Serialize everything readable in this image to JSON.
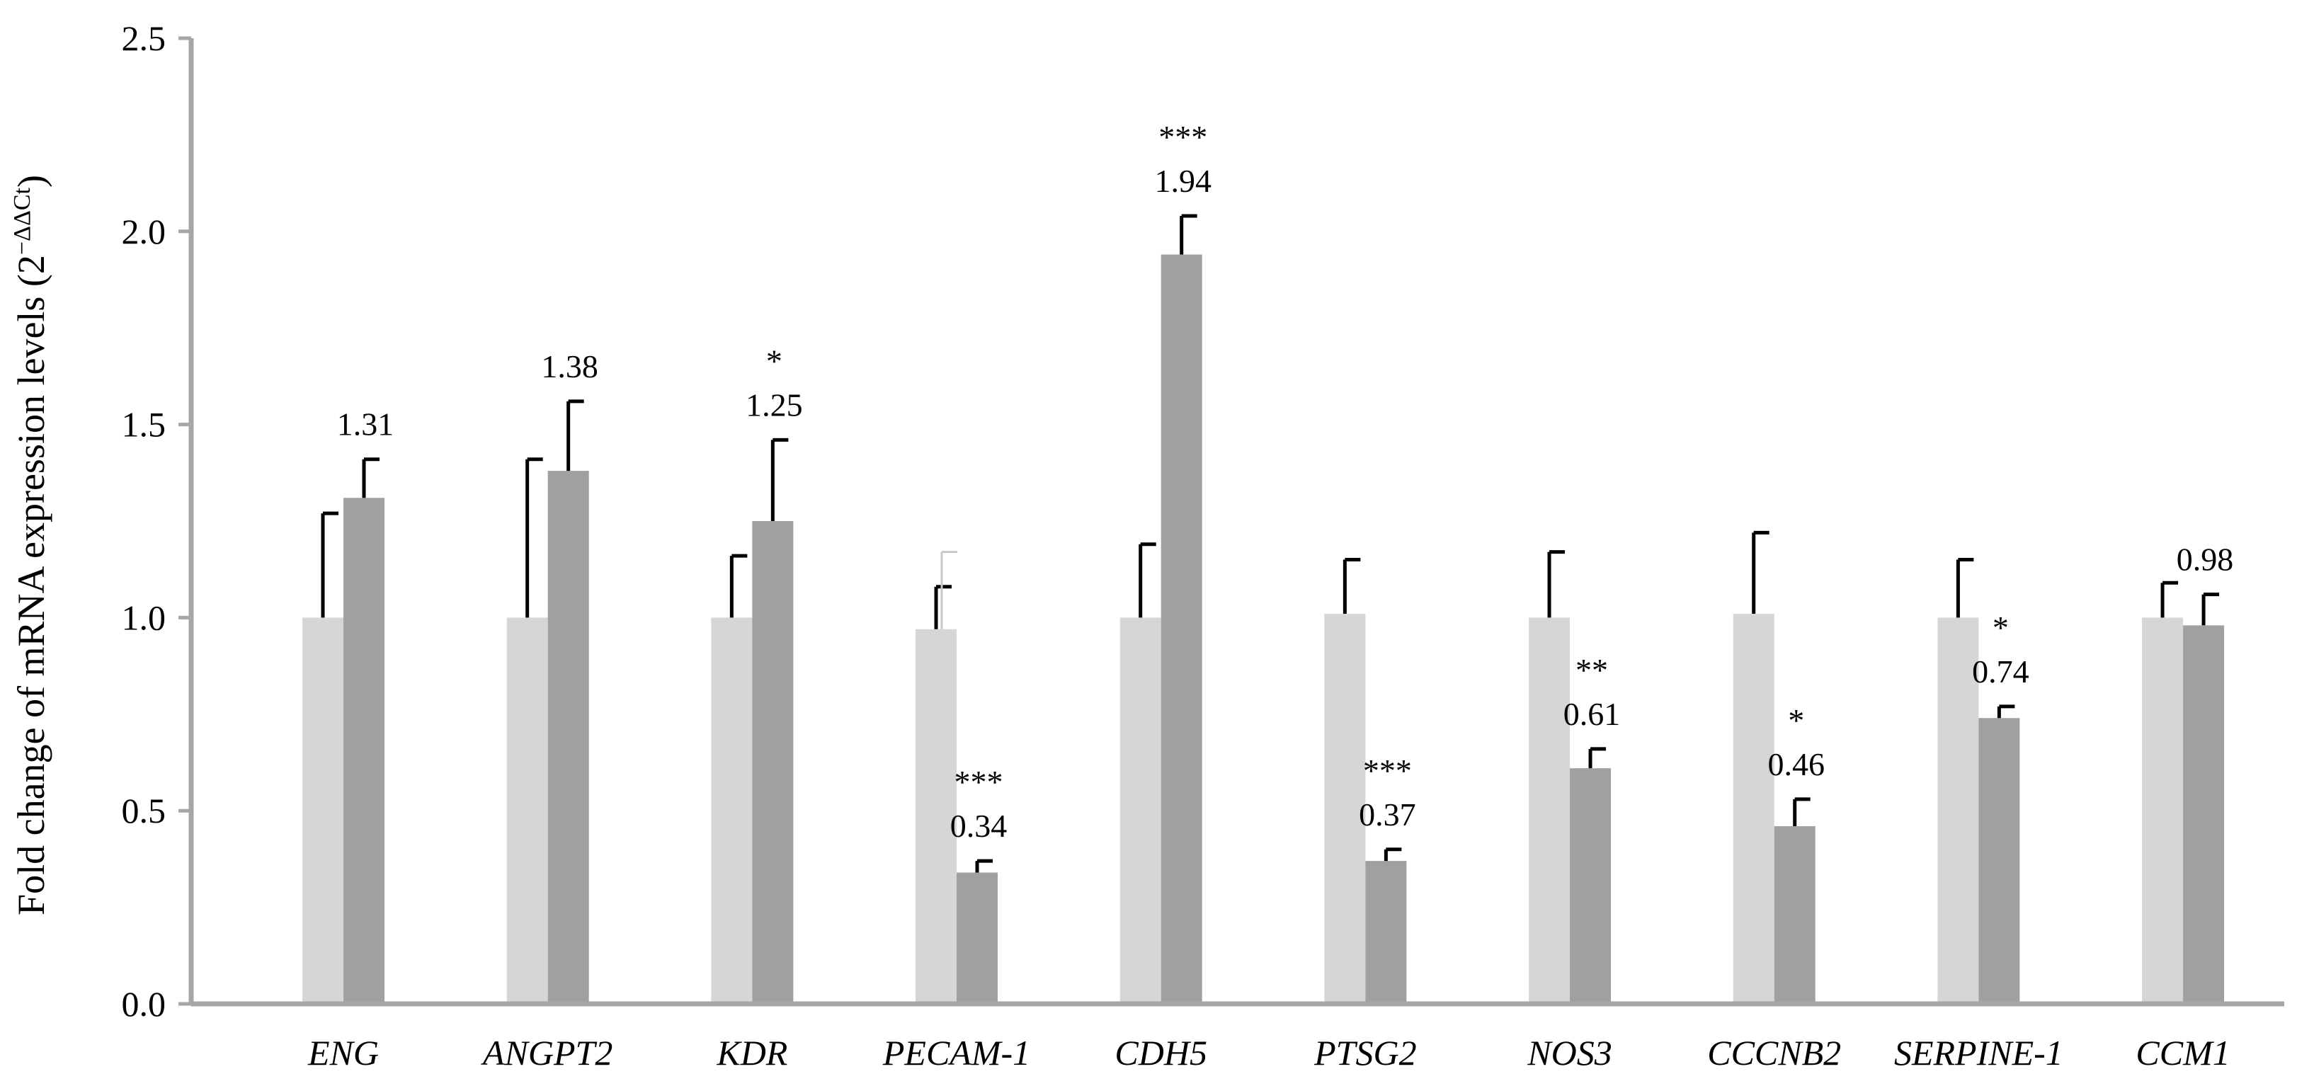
{
  "chart_data": {
    "type": "bar",
    "title": "",
    "xlabel": "",
    "ylabel": "Fold change of mRNA expression levels (2",
    "ylabel_superscript": "−ΔΔCt",
    "ylabel_close": ")",
    "ylim": [
      0,
      2.5
    ],
    "yticks": [
      "0.0",
      "0.5",
      "1.0",
      "1.5",
      "2.0",
      "2.5"
    ],
    "grid": false,
    "legend": "none",
    "categories": [
      "ENG",
      "ANGPT2",
      "KDR",
      "PECAM-1",
      "CDH5",
      "PTSG2",
      "NOS3",
      "CCCNB2",
      "SERPINE-1",
      "CCM1"
    ],
    "series": [
      {
        "color": "#d6d6d6",
        "values": [
          1.0,
          1.0,
          1.0,
          0.97,
          1.0,
          1.01,
          1.0,
          1.01,
          1.0,
          1.0
        ],
        "error": [
          0.27,
          0.41,
          0.16,
          0.11,
          0.19,
          0.14,
          0.17,
          0.21,
          0.15,
          0.09
        ],
        "extra_error": [
          null,
          null,
          null,
          0.2,
          null,
          null,
          null,
          null,
          null,
          null
        ]
      },
      {
        "color": "#a0a0a0",
        "values": [
          1.31,
          1.38,
          1.25,
          0.34,
          1.94,
          0.37,
          0.61,
          0.46,
          0.74,
          0.98
        ],
        "error": [
          0.1,
          0.18,
          0.21,
          0.03,
          0.1,
          0.03,
          0.05,
          0.07,
          0.03,
          0.08
        ],
        "labels": [
          "1.31",
          "1.38",
          "1.25",
          "0.34",
          "1.94",
          "0.37",
          "0.61",
          "0.46",
          "0.74",
          "0.98"
        ],
        "significance": [
          "",
          "",
          "*",
          "***",
          "***",
          "***",
          "**",
          "*",
          "*",
          ""
        ]
      }
    ]
  }
}
